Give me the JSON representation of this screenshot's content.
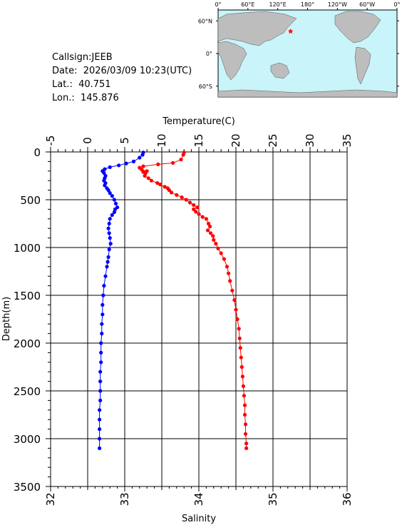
{
  "station": {
    "callsign_label": "Callsign:",
    "callsign": "JEEB",
    "date_label": "Date:",
    "date": "2026/03/09 10:23(UTC)",
    "lat_label": "Lat.:",
    "lat": "40.751",
    "lon_label": "Lon.:",
    "lon": "145.876"
  },
  "map": {
    "lon_labels": [
      "0°",
      "60°E",
      "120°E",
      "180°",
      "120°W",
      "60°W",
      "0°"
    ],
    "lat_labels": [
      "60°N",
      "0°",
      "60°S"
    ],
    "ocean_color": "#c8f4fa",
    "land_color": "#bdbdbd",
    "marker_color": "#ff0000",
    "marker": {
      "lon": 145.876,
      "lat": 40.751
    }
  },
  "chart_data": {
    "type": "line",
    "xlabel_top": "Temperature(C)",
    "xlabel_bottom": "Salinity",
    "ylabel": "Depth(m)",
    "temperature_range": [
      -5,
      35
    ],
    "temperature_ticks": [
      "-5",
      "0",
      "5",
      "10",
      "15",
      "20",
      "25",
      "30",
      "35"
    ],
    "salinity_range": [
      32,
      36
    ],
    "salinity_ticks": [
      "32",
      "33",
      "34",
      "35",
      "36"
    ],
    "depth_range": [
      0,
      3500
    ],
    "depth_ticks": [
      "0",
      "500",
      "1000",
      "1500",
      "2000",
      "2500",
      "3000",
      "3500"
    ],
    "grid": true,
    "series": [
      {
        "quantity": "temperature",
        "color": "#ff0000",
        "points": [
          [
            13.0,
            5
          ],
          [
            12.9,
            30
          ],
          [
            12.6,
            80
          ],
          [
            11.5,
            115
          ],
          [
            9.5,
            130
          ],
          [
            7.5,
            150
          ],
          [
            7.0,
            165
          ],
          [
            7.3,
            185
          ],
          [
            8.0,
            200
          ],
          [
            7.5,
            210
          ],
          [
            7.8,
            225
          ],
          [
            7.7,
            250
          ],
          [
            8.2,
            275
          ],
          [
            8.6,
            300
          ],
          [
            9.4,
            325
          ],
          [
            9.8,
            340
          ],
          [
            10.4,
            365
          ],
          [
            10.8,
            380
          ],
          [
            11.0,
            400
          ],
          [
            11.3,
            425
          ],
          [
            12.0,
            450
          ],
          [
            12.7,
            475
          ],
          [
            13.3,
            500
          ],
          [
            13.8,
            530
          ],
          [
            14.3,
            555
          ],
          [
            14.8,
            580
          ],
          [
            14.3,
            600
          ],
          [
            14.6,
            625
          ],
          [
            15.0,
            650
          ],
          [
            15.5,
            680
          ],
          [
            16.0,
            700
          ],
          [
            16.3,
            750
          ],
          [
            16.5,
            780
          ],
          [
            16.2,
            820
          ],
          [
            16.6,
            850
          ],
          [
            16.9,
            880
          ],
          [
            17.0,
            920
          ],
          [
            17.3,
            960
          ],
          [
            17.6,
            1010
          ],
          [
            18.0,
            1060
          ],
          [
            18.4,
            1120
          ],
          [
            18.8,
            1200
          ],
          [
            19.0,
            1270
          ],
          [
            19.2,
            1350
          ],
          [
            19.5,
            1450
          ],
          [
            19.8,
            1550
          ],
          [
            20.0,
            1650
          ],
          [
            20.2,
            1750
          ],
          [
            20.4,
            1850
          ],
          [
            20.5,
            1950
          ],
          [
            20.6,
            2050
          ],
          [
            20.7,
            2150
          ],
          [
            20.8,
            2250
          ],
          [
            20.9,
            2350
          ],
          [
            21.0,
            2450
          ],
          [
            21.1,
            2550
          ],
          [
            21.2,
            2650
          ],
          [
            21.2,
            2750
          ],
          [
            21.3,
            2850
          ],
          [
            21.3,
            2950
          ],
          [
            21.4,
            3050
          ],
          [
            21.4,
            3100
          ]
        ]
      },
      {
        "quantity": "salinity",
        "color": "#0000ff",
        "points": [
          [
            33.25,
            5
          ],
          [
            33.24,
            30
          ],
          [
            33.2,
            60
          ],
          [
            33.12,
            100
          ],
          [
            33.02,
            120
          ],
          [
            32.92,
            140
          ],
          [
            32.8,
            160
          ],
          [
            32.73,
            180
          ],
          [
            32.7,
            200
          ],
          [
            32.72,
            220
          ],
          [
            32.74,
            250
          ],
          [
            32.73,
            275
          ],
          [
            32.72,
            300
          ],
          [
            32.74,
            325
          ],
          [
            32.73,
            350
          ],
          [
            32.76,
            380
          ],
          [
            32.78,
            400
          ],
          [
            32.8,
            430
          ],
          [
            32.83,
            460
          ],
          [
            32.86,
            500
          ],
          [
            32.88,
            540
          ],
          [
            32.9,
            580
          ],
          [
            32.87,
            600
          ],
          [
            32.86,
            630
          ],
          [
            32.83,
            660
          ],
          [
            32.8,
            700
          ],
          [
            32.79,
            750
          ],
          [
            32.78,
            800
          ],
          [
            32.79,
            850
          ],
          [
            32.8,
            900
          ],
          [
            32.81,
            960
          ],
          [
            32.79,
            1020
          ],
          [
            32.78,
            1100
          ],
          [
            32.77,
            1150
          ],
          [
            32.76,
            1200
          ],
          [
            32.74,
            1300
          ],
          [
            32.72,
            1400
          ],
          [
            32.71,
            1500
          ],
          [
            32.7,
            1600
          ],
          [
            32.7,
            1700
          ],
          [
            32.69,
            1800
          ],
          [
            32.69,
            1900
          ],
          [
            32.68,
            2000
          ],
          [
            32.68,
            2100
          ],
          [
            32.68,
            2200
          ],
          [
            32.67,
            2300
          ],
          [
            32.67,
            2400
          ],
          [
            32.67,
            2500
          ],
          [
            32.67,
            2600
          ],
          [
            32.66,
            2700
          ],
          [
            32.66,
            2800
          ],
          [
            32.66,
            2900
          ],
          [
            32.66,
            3000
          ],
          [
            32.66,
            3100
          ]
        ]
      }
    ]
  }
}
